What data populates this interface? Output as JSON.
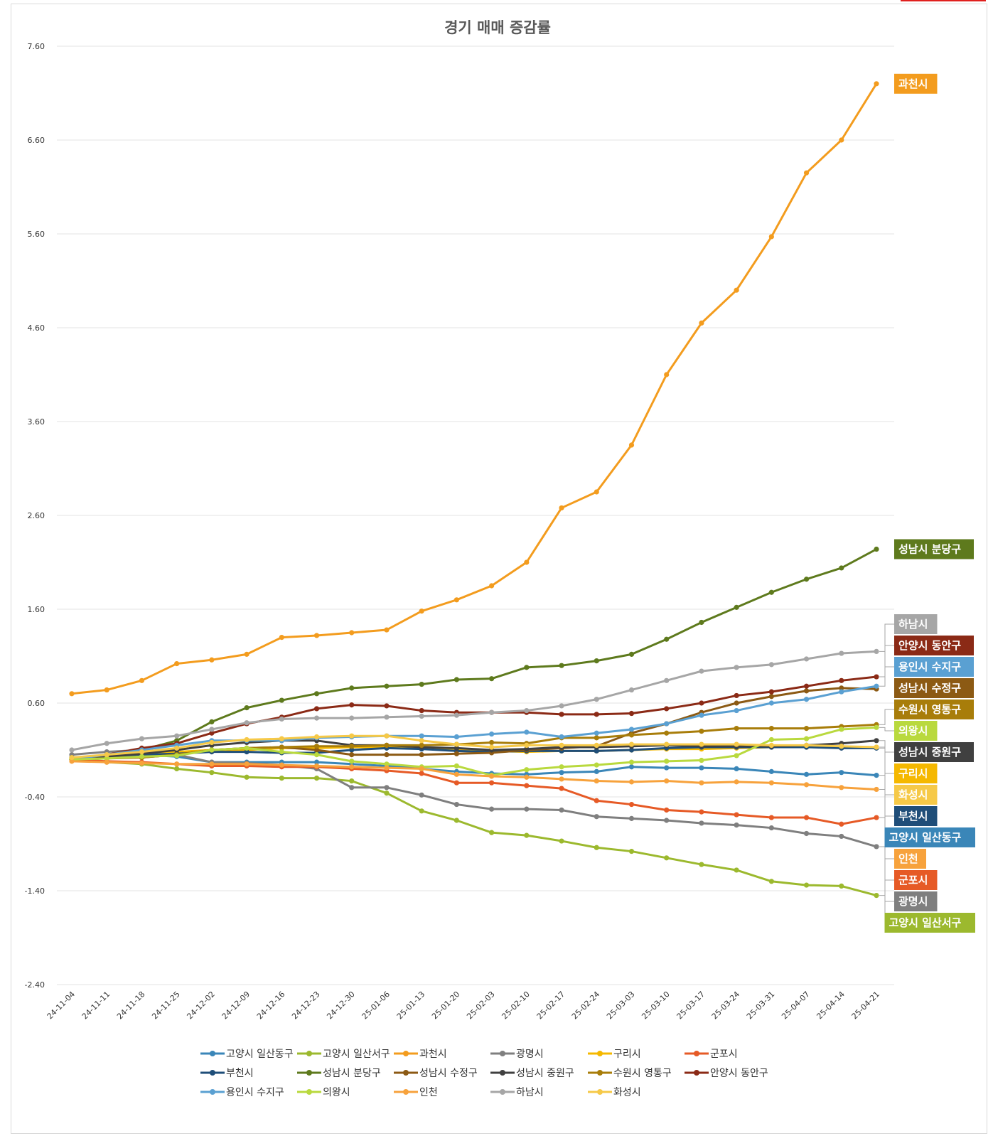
{
  "chart_data": {
    "type": "line",
    "title": "경기 매매 증감률",
    "xlabel": "",
    "ylabel": "",
    "ylim": [
      -2.4,
      7.6
    ],
    "yticks": [
      "7.60",
      "6.60",
      "5.60",
      "4.60",
      "3.60",
      "2.60",
      "1.60",
      "0.60",
      "-0.40",
      "-1.40",
      "-2.40"
    ],
    "ytick_values": [
      7.6,
      6.6,
      5.6,
      4.6,
      3.6,
      2.6,
      1.6,
      0.6,
      -0.4,
      -1.4,
      -2.4
    ],
    "grid": true,
    "legend_position": "bottom",
    "x": [
      "24-11-04",
      "24-11-11",
      "24-11-18",
      "24-11-25",
      "24-12-02",
      "24-12-09",
      "24-12-16",
      "24-12-23",
      "24-12-30",
      "25-01-06",
      "25-01-13",
      "25-01-20",
      "25-02-03",
      "25-02-10",
      "25-02-17",
      "25-02-24",
      "25-03-03",
      "25-03-10",
      "25-03-17",
      "25-03-24",
      "25-03-31",
      "25-04-07",
      "25-04-14",
      "25-04-21"
    ],
    "series": [
      {
        "name": "고양시 일산동구",
        "color": "#3a86b8",
        "end_label": "고양시 일산동구",
        "values": [
          0.0,
          0.03,
          0.05,
          0.03,
          -0.03,
          -0.03,
          -0.03,
          -0.03,
          -0.05,
          -0.07,
          -0.1,
          -0.13,
          -0.15,
          -0.16,
          -0.14,
          -0.13,
          -0.08,
          -0.09,
          -0.09,
          -0.1,
          -0.13,
          -0.16,
          -0.14,
          -0.17
        ]
      },
      {
        "name": "고양시 일산서구",
        "color": "#9cb92e",
        "end_label": "고양시 일산서구",
        "values": [
          0.0,
          -0.03,
          -0.05,
          -0.1,
          -0.14,
          -0.19,
          -0.2,
          -0.2,
          -0.23,
          -0.36,
          -0.55,
          -0.65,
          -0.78,
          -0.81,
          -0.87,
          -0.94,
          -0.98,
          -1.05,
          -1.12,
          -1.18,
          -1.3,
          -1.34,
          -1.35,
          -1.45
        ]
      },
      {
        "name": "과천시",
        "color": "#f39c1e",
        "end_label": "과천시",
        "values": [
          0.7,
          0.74,
          0.84,
          1.02,
          1.06,
          1.12,
          1.3,
          1.32,
          1.35,
          1.38,
          1.58,
          1.7,
          1.85,
          2.1,
          2.68,
          2.85,
          3.35,
          4.1,
          4.65,
          5.0,
          5.57,
          6.25,
          6.6,
          7.2
        ]
      },
      {
        "name": "광명시",
        "color": "#7f7f7f",
        "end_label": "광명시",
        "values": [
          0.05,
          0.08,
          0.1,
          0.05,
          -0.03,
          -0.04,
          -0.06,
          -0.1,
          -0.3,
          -0.3,
          -0.38,
          -0.48,
          -0.53,
          -0.53,
          -0.54,
          -0.61,
          -0.63,
          -0.65,
          -0.68,
          -0.7,
          -0.73,
          -0.79,
          -0.82,
          -0.93
        ]
      },
      {
        "name": "구리시",
        "color": "#f5b800",
        "end_label": "구리시",
        "values": [
          0.0,
          0.03,
          0.05,
          0.08,
          0.1,
          0.1,
          0.12,
          0.12,
          0.13,
          0.13,
          0.12,
          0.1,
          0.09,
          0.08,
          0.09,
          0.09,
          0.1,
          0.11,
          0.11,
          0.12,
          0.13,
          0.13,
          0.13,
          0.13
        ]
      },
      {
        "name": "군포시",
        "color": "#e65a26",
        "end_label": "군포시",
        "values": [
          0.0,
          -0.02,
          -0.03,
          -0.05,
          -0.07,
          -0.07,
          -0.08,
          -0.08,
          -0.1,
          -0.12,
          -0.15,
          -0.25,
          -0.25,
          -0.28,
          -0.31,
          -0.44,
          -0.48,
          -0.54,
          -0.56,
          -0.59,
          -0.62,
          -0.62,
          -0.69,
          -0.62
        ]
      },
      {
        "name": "부천시",
        "color": "#1f4e79",
        "end_label": "부천시",
        "values": [
          0.02,
          0.03,
          0.05,
          0.06,
          0.08,
          0.08,
          0.07,
          0.07,
          0.1,
          0.12,
          0.11,
          0.09,
          0.08,
          0.09,
          0.09,
          0.09,
          0.1,
          0.12,
          0.13,
          0.13,
          0.13,
          0.13,
          0.12,
          0.12
        ]
      },
      {
        "name": "성남시 분당구",
        "color": "#5e7a1d",
        "end_label": "성남시 분당구",
        "values": [
          0.0,
          0.05,
          0.1,
          0.2,
          0.4,
          0.55,
          0.63,
          0.7,
          0.76,
          0.78,
          0.8,
          0.85,
          0.86,
          0.98,
          1.0,
          1.05,
          1.12,
          1.28,
          1.46,
          1.62,
          1.78,
          1.92,
          2.04,
          2.24
        ]
      },
      {
        "name": "성남시 수정구",
        "color": "#8c5a14",
        "end_label": "성남시 수정구",
        "values": [
          0.0,
          0.02,
          0.02,
          0.05,
          0.1,
          0.12,
          0.13,
          0.1,
          0.05,
          0.05,
          0.05,
          0.06,
          0.07,
          0.1,
          0.12,
          0.14,
          0.28,
          0.38,
          0.5,
          0.6,
          0.67,
          0.73,
          0.76,
          0.75
        ]
      },
      {
        "name": "성남시 중원구",
        "color": "#404040",
        "end_label": "성남시 중원구",
        "values": [
          0.02,
          0.03,
          0.06,
          0.1,
          0.15,
          0.18,
          0.2,
          0.2,
          0.15,
          0.15,
          0.13,
          0.12,
          0.1,
          0.11,
          0.13,
          0.13,
          0.14,
          0.15,
          0.14,
          0.14,
          0.14,
          0.15,
          0.17,
          0.2
        ]
      },
      {
        "name": "수원시 영통구",
        "color": "#a87d0a",
        "end_label": "수원시 영통구",
        "values": [
          0.0,
          0.01,
          0.02,
          0.05,
          0.1,
          0.12,
          0.13,
          0.14,
          0.14,
          0.15,
          0.15,
          0.16,
          0.18,
          0.17,
          0.23,
          0.23,
          0.26,
          0.28,
          0.3,
          0.33,
          0.33,
          0.33,
          0.35,
          0.37
        ]
      },
      {
        "name": "안양시 동안구",
        "color": "#8b2a16",
        "end_label": "안양시 동안구",
        "values": [
          0.0,
          0.05,
          0.12,
          0.17,
          0.28,
          0.38,
          0.45,
          0.54,
          0.58,
          0.57,
          0.52,
          0.5,
          0.5,
          0.5,
          0.48,
          0.48,
          0.49,
          0.54,
          0.6,
          0.68,
          0.72,
          0.78,
          0.84,
          0.88
        ]
      },
      {
        "name": "용인시 수지구",
        "color": "#5aa0d2",
        "end_label": "용인시 수지구",
        "values": [
          0.0,
          0.05,
          0.1,
          0.15,
          0.2,
          0.2,
          0.2,
          0.23,
          0.24,
          0.25,
          0.25,
          0.24,
          0.27,
          0.29,
          0.24,
          0.28,
          0.32,
          0.38,
          0.47,
          0.52,
          0.6,
          0.64,
          0.72,
          0.78
        ]
      },
      {
        "name": "의왕시",
        "color": "#b9d93e",
        "end_label": "의왕시",
        "values": [
          0.0,
          0.01,
          0.03,
          0.04,
          0.1,
          0.12,
          0.08,
          0.05,
          -0.02,
          -0.05,
          -0.08,
          -0.07,
          -0.17,
          -0.11,
          -0.08,
          -0.06,
          -0.03,
          -0.02,
          -0.01,
          0.04,
          0.21,
          0.22,
          0.32,
          0.34
        ]
      },
      {
        "name": "인천",
        "color": "#f7a23c",
        "end_label": "인천",
        "values": [
          -0.02,
          -0.03,
          -0.04,
          -0.05,
          -0.05,
          -0.05,
          -0.06,
          -0.07,
          -0.08,
          -0.09,
          -0.1,
          -0.16,
          -0.18,
          -0.19,
          -0.21,
          -0.23,
          -0.24,
          -0.23,
          -0.25,
          -0.24,
          -0.25,
          -0.27,
          -0.3,
          -0.32
        ]
      },
      {
        "name": "하남시",
        "color": "#a6a6a6",
        "end_label": "하남시",
        "values": [
          0.1,
          0.17,
          0.22,
          0.25,
          0.32,
          0.39,
          0.43,
          0.44,
          0.44,
          0.45,
          0.46,
          0.47,
          0.5,
          0.52,
          0.57,
          0.64,
          0.74,
          0.84,
          0.94,
          0.98,
          1.01,
          1.07,
          1.13,
          1.15
        ]
      },
      {
        "name": "화성시",
        "color": "#f6c948",
        "end_label": "화성시",
        "values": [
          0.02,
          0.05,
          0.08,
          0.12,
          0.18,
          0.21,
          0.22,
          0.24,
          0.25,
          0.25,
          0.2,
          0.16,
          0.13,
          0.15,
          0.15,
          0.15,
          0.16,
          0.16,
          0.16,
          0.16,
          0.15,
          0.15,
          0.14,
          0.13
        ]
      }
    ]
  }
}
